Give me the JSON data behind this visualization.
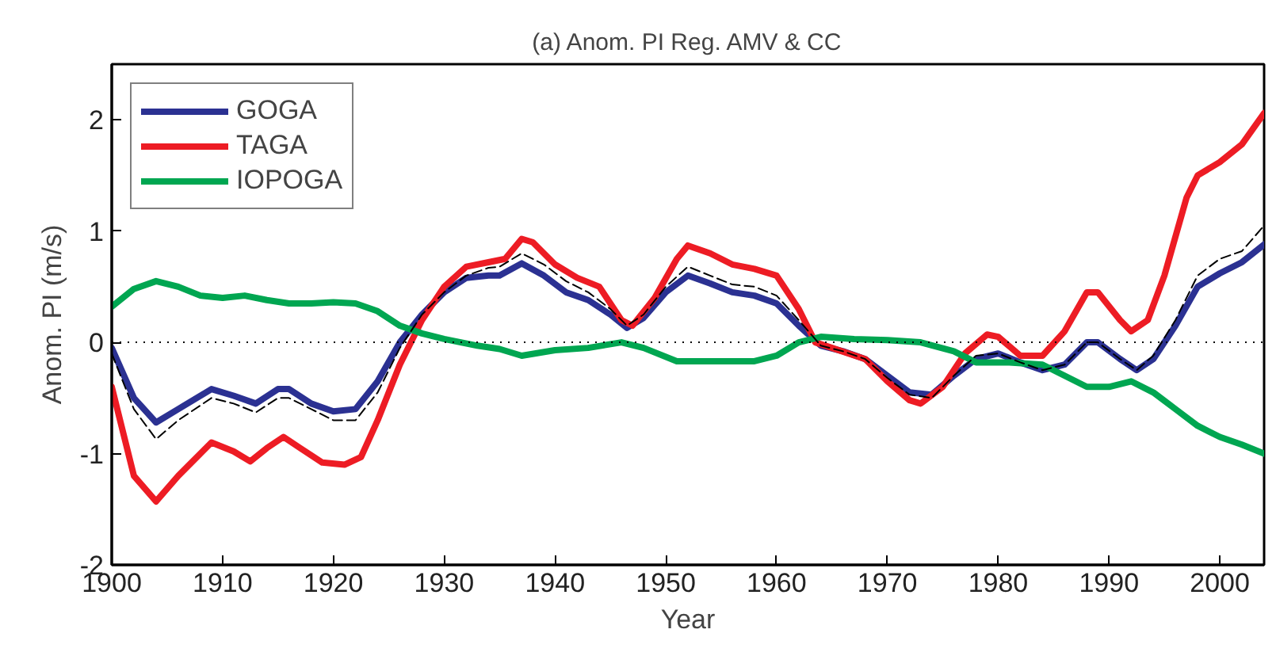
{
  "chart_data": {
    "type": "line",
    "title": "(a) Anom. PI Reg. AMV & CC",
    "xlabel": "Year",
    "ylabel": "Anom. PI (m/s)",
    "xlim": [
      1900,
      2004
    ],
    "xticks": [
      1900,
      1910,
      1920,
      1930,
      1940,
      1950,
      1960,
      1970,
      1980,
      1990,
      2000
    ],
    "ylim": [
      -2,
      2.5
    ],
    "yticks": [
      -2,
      -1,
      0,
      1,
      2
    ],
    "grid": false,
    "legend": "top left",
    "ref_lines": [
      {
        "axis": "y",
        "value": 0,
        "color": "#000000",
        "line_style": "dotted"
      }
    ],
    "series": [
      {
        "name": "GOGA",
        "color": "#2b3192",
        "line_style": "solid",
        "x": [
          1900,
          1902,
          1904,
          1906,
          1909,
          1911,
          1913,
          1915,
          1916,
          1918,
          1920,
          1922,
          1924,
          1926,
          1928,
          1930,
          1932,
          1934,
          1935,
          1937,
          1939,
          1941,
          1943,
          1945,
          1946.5,
          1948,
          1950,
          1952,
          1954,
          1956,
          1958,
          1960,
          1962,
          1964,
          1966,
          1968,
          1970,
          1972,
          1974,
          1976,
          1978,
          1980,
          1982,
          1984,
          1986,
          1988,
          1989,
          1991,
          1992.5,
          1994,
          1996,
          1998,
          2000,
          2002,
          2004
        ],
        "values": [
          -0.05,
          -0.5,
          -0.72,
          -0.6,
          -0.42,
          -0.48,
          -0.55,
          -0.42,
          -0.42,
          -0.55,
          -0.62,
          -0.6,
          -0.35,
          0.0,
          0.25,
          0.45,
          0.58,
          0.6,
          0.6,
          0.71,
          0.6,
          0.45,
          0.38,
          0.25,
          0.13,
          0.22,
          0.45,
          0.6,
          0.53,
          0.45,
          0.42,
          0.35,
          0.15,
          -0.03,
          -0.08,
          -0.15,
          -0.3,
          -0.45,
          -0.47,
          -0.3,
          -0.15,
          -0.1,
          -0.18,
          -0.25,
          -0.2,
          0.0,
          0.0,
          -0.15,
          -0.25,
          -0.15,
          0.15,
          0.5,
          0.62,
          0.72,
          0.88
        ]
      },
      {
        "name": "TAGA",
        "color": "#ed1c24",
        "line_style": "solid",
        "x": [
          1900,
          1902,
          1904,
          1906,
          1909,
          1911,
          1912.5,
          1914,
          1915.5,
          1917,
          1919,
          1921,
          1922.5,
          1924,
          1926,
          1928,
          1930,
          1932,
          1934,
          1935.5,
          1937,
          1938,
          1940,
          1942,
          1944,
          1946,
          1947,
          1949,
          1951,
          1952,
          1954,
          1956,
          1958,
          1960,
          1962,
          1963.5,
          1965,
          1968,
          1970,
          1972,
          1973,
          1975,
          1977,
          1979,
          1980,
          1982,
          1984,
          1986,
          1988,
          1989,
          1991,
          1992,
          1993.5,
          1995,
          1997,
          1998,
          2000,
          2002,
          2004
        ],
        "values": [
          -0.4,
          -1.2,
          -1.43,
          -1.2,
          -0.9,
          -0.98,
          -1.07,
          -0.95,
          -0.85,
          -0.95,
          -1.08,
          -1.1,
          -1.03,
          -0.7,
          -0.2,
          0.2,
          0.5,
          0.68,
          0.72,
          0.75,
          0.93,
          0.9,
          0.7,
          0.58,
          0.5,
          0.2,
          0.15,
          0.4,
          0.75,
          0.87,
          0.8,
          0.7,
          0.66,
          0.6,
          0.3,
          0.0,
          -0.05,
          -0.15,
          -0.35,
          -0.52,
          -0.55,
          -0.4,
          -0.1,
          0.07,
          0.05,
          -0.12,
          -0.12,
          0.1,
          0.45,
          0.45,
          0.2,
          0.1,
          0.2,
          0.6,
          1.3,
          1.5,
          1.62,
          1.78,
          2.06
        ]
      },
      {
        "name": "IOPOGA",
        "color": "#00a651",
        "line_style": "solid",
        "x": [
          1900,
          1902,
          1904,
          1906,
          1908,
          1910,
          1912,
          1914,
          1916,
          1918,
          1920,
          1922,
          1924,
          1926,
          1928,
          1930,
          1933,
          1935,
          1937,
          1940,
          1943,
          1946,
          1948,
          1951,
          1955,
          1958,
          1960,
          1962,
          1964,
          1967,
          1970,
          1973,
          1976,
          1978,
          1981,
          1984,
          1986,
          1988,
          1990,
          1992,
          1994,
          1996,
          1998,
          2000,
          2002,
          2004
        ],
        "values": [
          0.32,
          0.48,
          0.55,
          0.5,
          0.42,
          0.4,
          0.42,
          0.38,
          0.35,
          0.35,
          0.36,
          0.35,
          0.28,
          0.15,
          0.08,
          0.03,
          -0.03,
          -0.06,
          -0.12,
          -0.07,
          -0.05,
          0.0,
          -0.05,
          -0.17,
          -0.17,
          -0.17,
          -0.12,
          0.0,
          0.05,
          0.03,
          0.02,
          0.0,
          -0.08,
          -0.18,
          -0.18,
          -0.2,
          -0.3,
          -0.4,
          -0.4,
          -0.35,
          -0.45,
          -0.6,
          -0.75,
          -0.85,
          -0.92,
          -1.0
        ]
      },
      {
        "color": "#000000",
        "line_style": "dashed",
        "x": [
          1900,
          1902,
          1904,
          1906,
          1909,
          1911,
          1913,
          1915,
          1916,
          1918,
          1920,
          1922,
          1924,
          1926,
          1928,
          1930,
          1932,
          1934,
          1935,
          1937,
          1939,
          1941,
          1943,
          1945,
          1946.5,
          1948,
          1950,
          1952,
          1954,
          1956,
          1958,
          1960,
          1962,
          1964,
          1966,
          1968,
          1970,
          1972,
          1974,
          1976,
          1978,
          1980,
          1982,
          1984,
          1986,
          1988,
          1989,
          1991,
          1992.5,
          1994,
          1996,
          1998,
          2000,
          2002,
          2004
        ],
        "values": [
          -0.1,
          -0.6,
          -0.87,
          -0.7,
          -0.5,
          -0.55,
          -0.63,
          -0.5,
          -0.5,
          -0.6,
          -0.7,
          -0.7,
          -0.45,
          -0.05,
          0.25,
          0.45,
          0.6,
          0.67,
          0.68,
          0.8,
          0.7,
          0.55,
          0.45,
          0.3,
          0.15,
          0.25,
          0.5,
          0.68,
          0.6,
          0.52,
          0.5,
          0.42,
          0.2,
          -0.03,
          -0.08,
          -0.15,
          -0.32,
          -0.47,
          -0.5,
          -0.3,
          -0.12,
          -0.1,
          -0.18,
          -0.25,
          -0.2,
          0.0,
          0.0,
          -0.15,
          -0.25,
          -0.12,
          0.2,
          0.6,
          0.75,
          0.82,
          1.05
        ]
      }
    ]
  }
}
